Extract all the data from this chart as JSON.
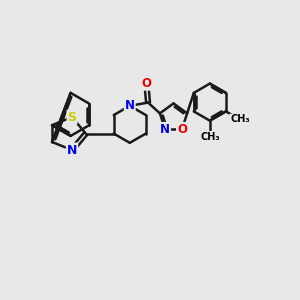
{
  "background_color": "#e8e8e8",
  "bond_color": "#1a1a1a",
  "S_color": "#cccc00",
  "N_color": "#0000ee",
  "O_color": "#ee0000",
  "bond_width": 1.8,
  "font_size_atom": 8.5,
  "figsize": [
    3.0,
    3.0
  ],
  "dpi": 100,
  "xlim": [
    0,
    10
  ],
  "ylim": [
    0,
    10
  ]
}
